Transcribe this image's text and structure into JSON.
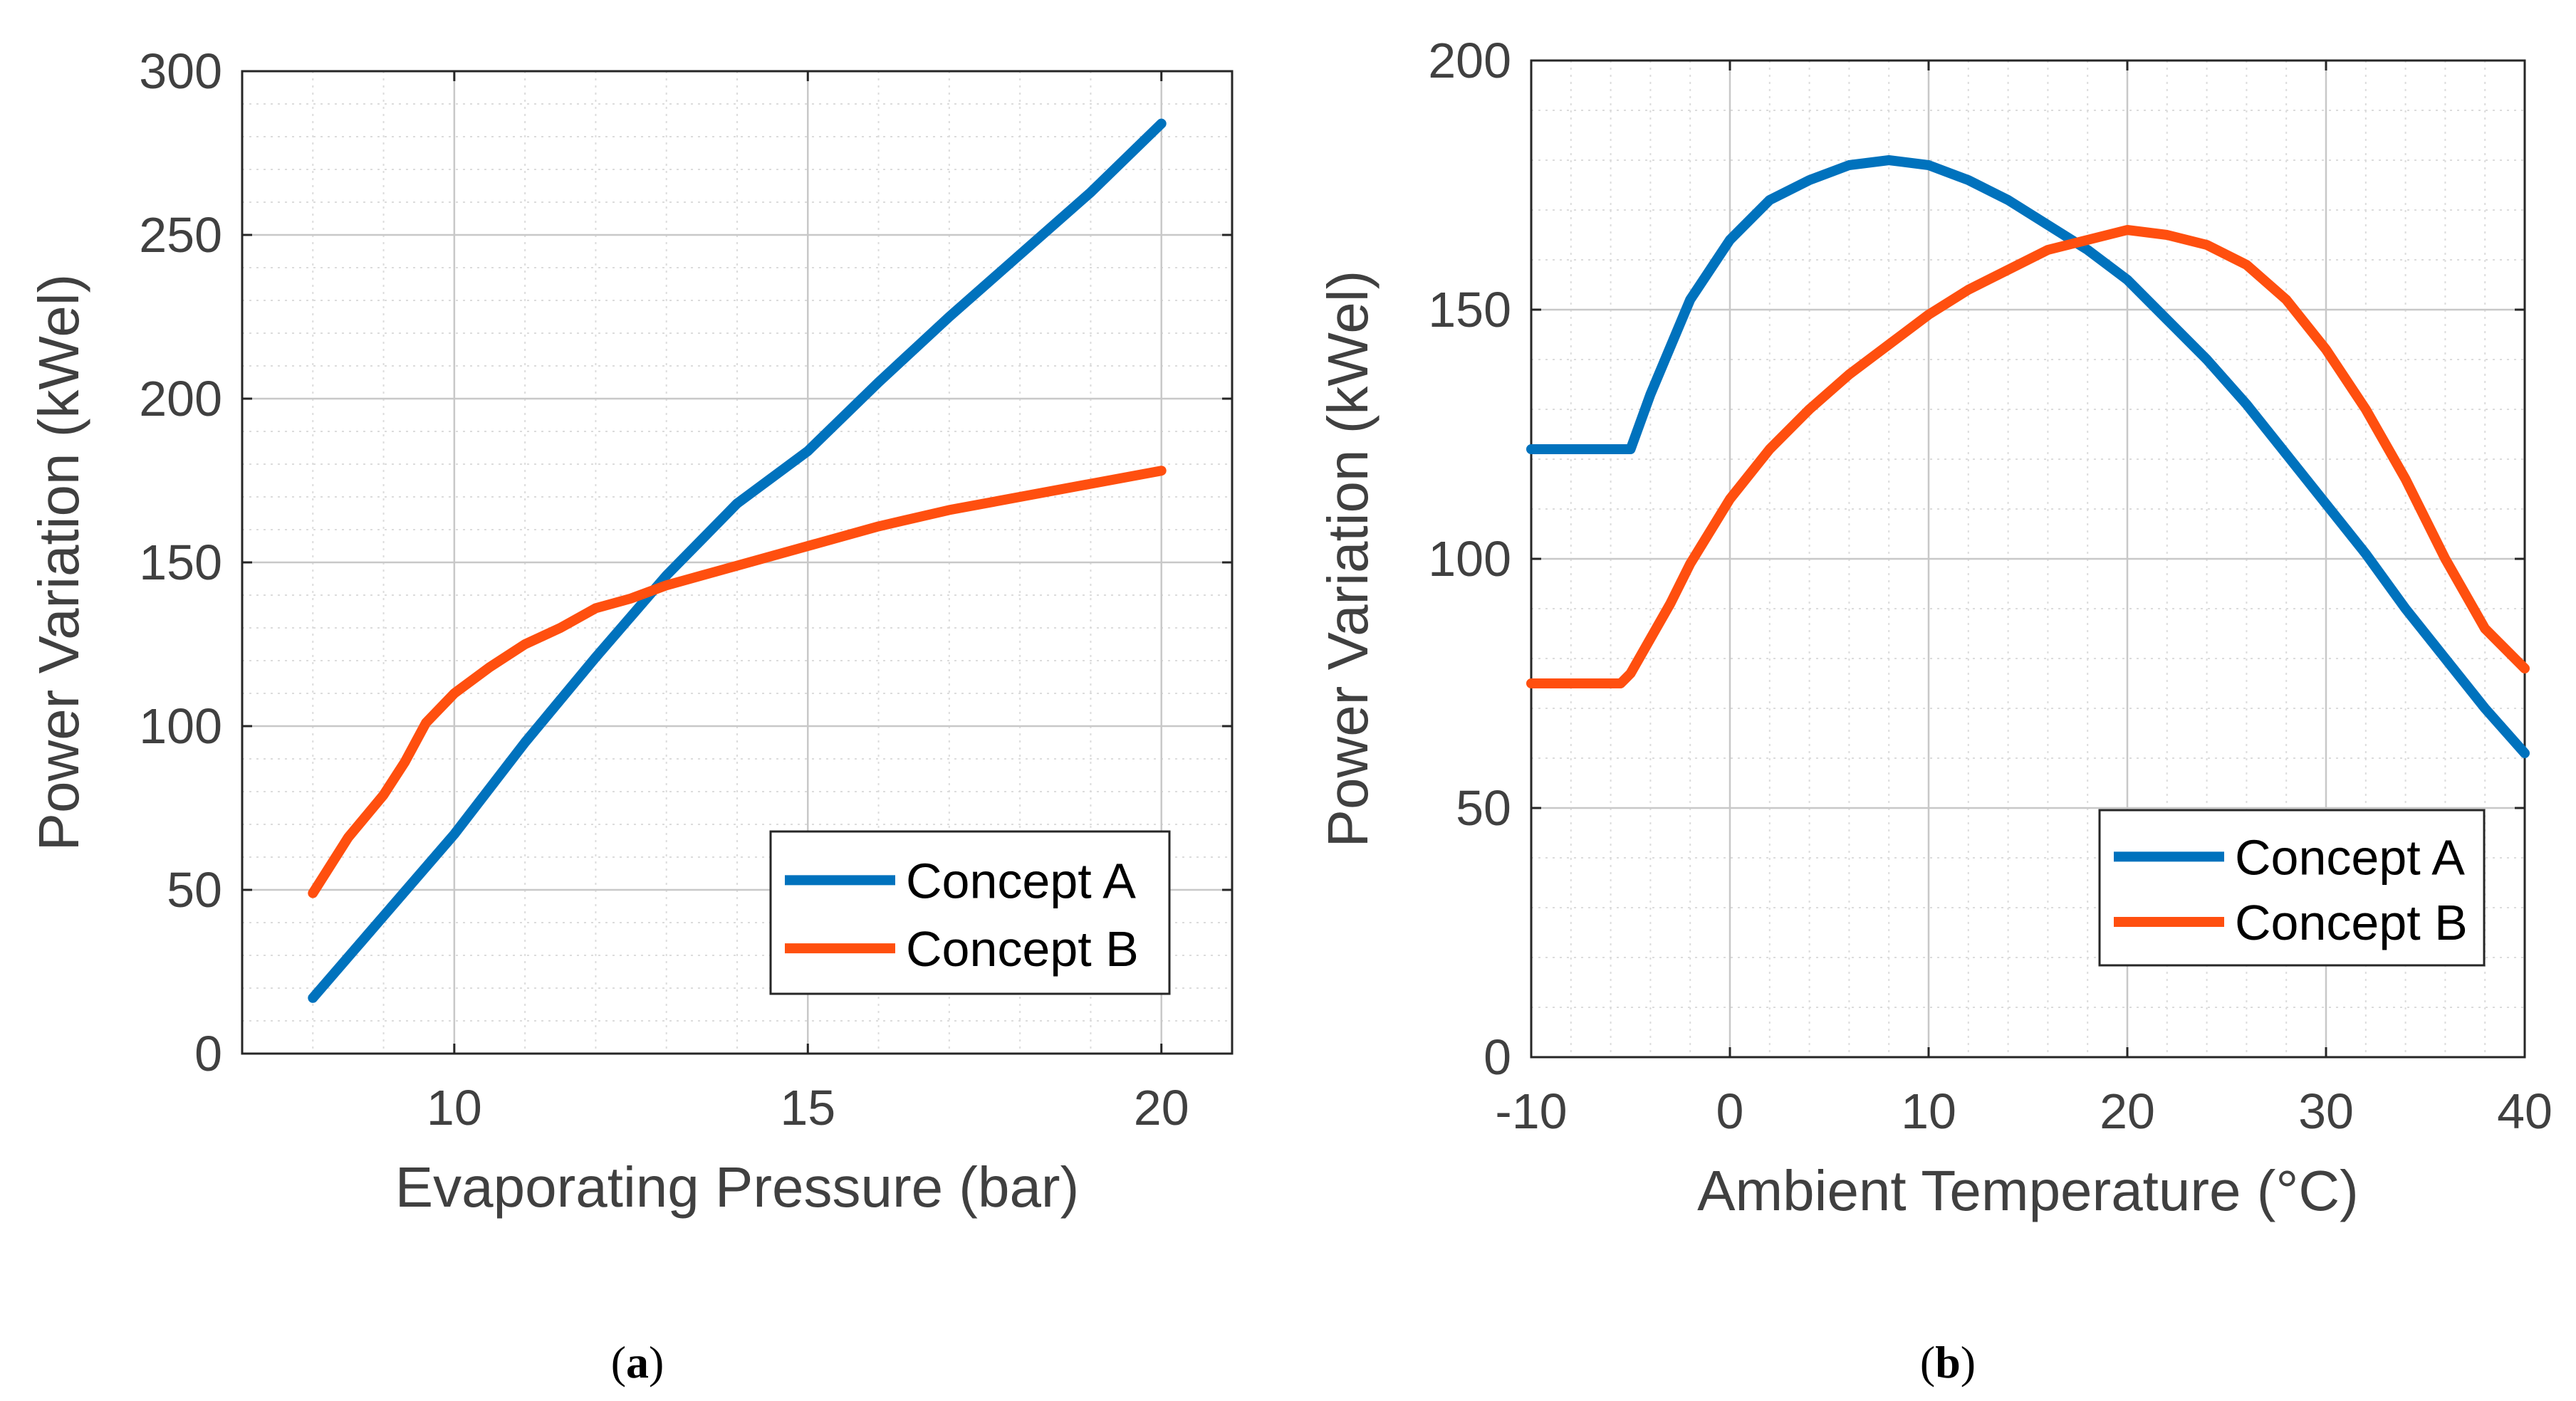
{
  "colors": {
    "concept_a": "#0072BD",
    "concept_b": "#FF4F0F",
    "axis": "#262626",
    "grid": "#c8c8c8",
    "tick_text": "#404040"
  },
  "chart_data": [
    {
      "id": "a",
      "type": "line",
      "caption": "a",
      "xlabel": "Evaporating Pressure (bar)",
      "ylabel": "Power Variation (kWel)",
      "xlim": [
        7,
        21
      ],
      "ylim": [
        0,
        300
      ],
      "xticks": [
        10,
        15,
        20
      ],
      "yticks": [
        0,
        50,
        100,
        150,
        200,
        250,
        300
      ],
      "xtick_labels": [
        "10",
        "15",
        "20"
      ],
      "ytick_labels": [
        "0",
        "50",
        "100",
        "150",
        "200",
        "250",
        "300"
      ],
      "x_minor_step": 1,
      "y_minor_step": 10,
      "grid": true,
      "legend": "bottom-right",
      "series": [
        {
          "name": "Concept A",
          "x": [
            8,
            9,
            10,
            11,
            12,
            13,
            13.5,
            14,
            15,
            16,
            17,
            18,
            19,
            20
          ],
          "y": [
            17,
            42,
            67,
            95,
            121,
            146,
            157,
            168,
            184,
            205,
            225,
            244,
            263,
            284
          ]
        },
        {
          "name": "Concept B",
          "x": [
            8,
            8.5,
            9.0,
            9.3,
            9.6,
            10,
            10.5,
            11,
            11.5,
            12,
            12.5,
            13,
            13.5,
            14,
            15,
            16,
            17,
            18,
            19,
            20
          ],
          "y": [
            49,
            66,
            79,
            89,
            101,
            110,
            118,
            125,
            130,
            136,
            139,
            143,
            146,
            149,
            155,
            161,
            166,
            170,
            174,
            178
          ]
        }
      ]
    },
    {
      "id": "b",
      "type": "line",
      "caption": "b",
      "xlabel": "Ambient Temperature (°C)",
      "ylabel": "Power Variation (kWel)",
      "xlim": [
        -10,
        40
      ],
      "ylim": [
        0,
        200
      ],
      "xticks": [
        -10,
        0,
        10,
        20,
        30,
        40
      ],
      "yticks": [
        0,
        50,
        100,
        150,
        200
      ],
      "xtick_labels": [
        "-10",
        "0",
        "10",
        "20",
        "30",
        "40"
      ],
      "ytick_labels": [
        "0",
        "50",
        "100",
        "150",
        "200"
      ],
      "x_minor_step": 2,
      "y_minor_step": 10,
      "grid": true,
      "legend": "bottom-right",
      "series": [
        {
          "name": "Concept A",
          "x": [
            -10,
            -5,
            -4,
            -2,
            0,
            2,
            4,
            6,
            8,
            10,
            12,
            14,
            16,
            18,
            20,
            22,
            24,
            26,
            28,
            30,
            32,
            34,
            36,
            38,
            40
          ],
          "y": [
            122,
            122,
            133,
            152,
            164,
            172,
            176,
            179,
            180,
            179,
            176,
            172,
            167,
            162,
            156,
            148,
            140,
            131,
            121,
            111,
            101,
            90,
            80,
            70,
            61
          ]
        },
        {
          "name": "Concept B",
          "x": [
            -10,
            -5.5,
            -5,
            -4,
            -3,
            -2,
            0,
            2,
            4,
            6,
            8,
            10,
            12,
            14,
            16,
            18,
            20,
            22,
            24,
            26,
            28,
            30,
            32,
            34,
            36,
            38,
            40
          ],
          "y": [
            75,
            75,
            77,
            84,
            91,
            99,
            112,
            122,
            130,
            137,
            143,
            149,
            154,
            158,
            162,
            164,
            166,
            165,
            163,
            159,
            152,
            142,
            130,
            116,
            100,
            86,
            78
          ]
        }
      ]
    }
  ]
}
